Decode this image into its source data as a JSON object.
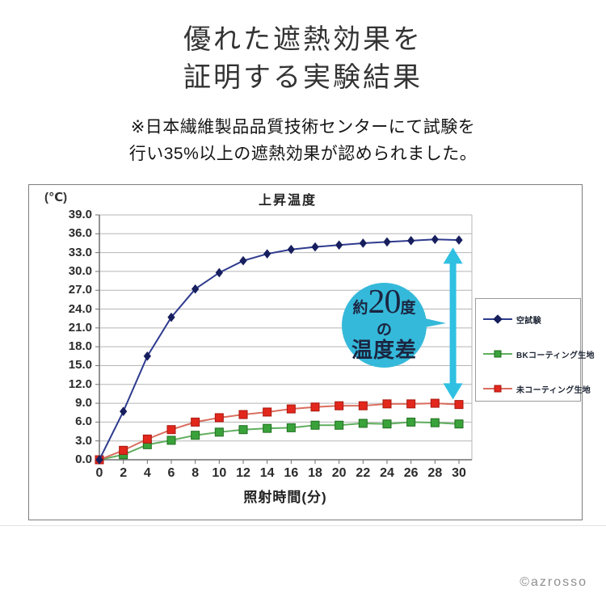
{
  "header": {
    "title_line1": "優れた遮熱効果を",
    "title_line2": "証明する実験結果",
    "note_line1": "※日本繊維製品品質技術センターにて試験を",
    "note_line2": "行い35%以上の遮熱効果が認められました。"
  },
  "chart_data": {
    "type": "line",
    "title": "上昇温度",
    "y_unit_label": "(℃)",
    "xlabel": "照射時間(分)",
    "ylabel": "",
    "ylim": [
      0,
      39
    ],
    "ytick_step": 3,
    "yticks": [
      "0.0",
      "3.0",
      "6.0",
      "9.0",
      "12.0",
      "15.0",
      "18.0",
      "21.0",
      "24.0",
      "27.0",
      "30.0",
      "33.0",
      "36.0",
      "39.0"
    ],
    "xticks": [
      "0",
      "2",
      "4",
      "6",
      "8",
      "10",
      "12",
      "14",
      "16",
      "18",
      "20",
      "22",
      "24",
      "26",
      "28",
      "30"
    ],
    "x": [
      0,
      2,
      4,
      6,
      8,
      10,
      12,
      14,
      16,
      18,
      20,
      22,
      24,
      26,
      28,
      30
    ],
    "grid": "horizontal",
    "legend_position": "right",
    "series": [
      {
        "name": "空試験",
        "marker": "diamond",
        "line_color": "#2e3b8e",
        "marker_color": "#171f5e",
        "marker_stroke": "#171f5e",
        "values": [
          0.0,
          7.7,
          16.5,
          22.7,
          27.2,
          29.8,
          31.7,
          32.8,
          33.5,
          33.9,
          34.2,
          34.5,
          34.7,
          34.9,
          35.1,
          35.0
        ]
      },
      {
        "name": "BKコーティング生地",
        "marker": "square",
        "line_color": "#5fae5f",
        "marker_color": "#3aa23a",
        "marker_stroke": "#1f6e1f",
        "values": [
          0.0,
          0.8,
          2.4,
          3.1,
          3.9,
          4.4,
          4.8,
          5.0,
          5.1,
          5.5,
          5.5,
          5.8,
          5.7,
          6.0,
          5.9,
          5.7
        ]
      },
      {
        "name": "未コーティング生地",
        "marker": "square",
        "line_color": "#da6c5e",
        "marker_color": "#e2271c",
        "marker_stroke": "#aa150e",
        "values": [
          0.0,
          1.5,
          3.3,
          4.8,
          6.0,
          6.7,
          7.2,
          7.6,
          8.1,
          8.4,
          8.6,
          8.6,
          8.9,
          8.9,
          9.0,
          8.8
        ]
      }
    ],
    "annotation_arrow": {
      "x": 29.5,
      "v_top": 33.8,
      "v_bottom": 9.6,
      "color": "#2fc0e2"
    }
  },
  "callout": {
    "line1_prefix": "約",
    "line1_big": "20",
    "line1_suffix": "度",
    "line2": "の",
    "line3": "温度差",
    "bubble_color": "#35b9da",
    "text_color": "#1b2540"
  },
  "copyright": "©azrosso"
}
